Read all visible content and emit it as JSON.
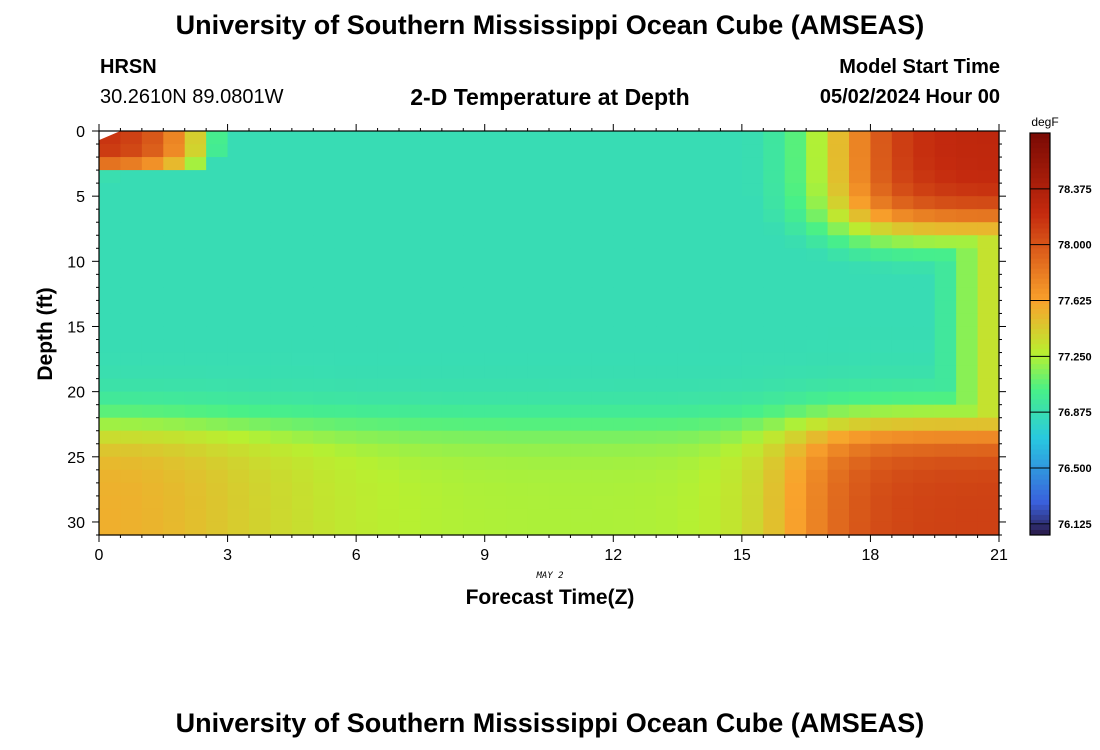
{
  "header": {
    "title": "University of Southern Mississippi Ocean Cube (AMSEAS)",
    "station": "HRSN",
    "coordinates": "30.2610N  89.0801W",
    "subtitle": "2-D Temperature at Depth",
    "model_start_label": "Model Start Time",
    "model_start_value": "05/02/2024 Hour 00"
  },
  "footer": {
    "title": "University of Southern Mississippi Ocean Cube (AMSEAS)"
  },
  "chart_data": {
    "type": "heatmap",
    "title": "2-D Temperature at Depth",
    "xlabel": "Forecast Time(Z)",
    "x_sublabel": "MAY 2",
    "ylabel": "Depth (ft)",
    "colorbar_label": "degF",
    "xlim": [
      0,
      21
    ],
    "ylim": [
      0,
      31
    ],
    "x_ticks": [
      0,
      3,
      6,
      9,
      12,
      15,
      18,
      21
    ],
    "y_ticks": [
      0,
      5,
      10,
      15,
      20,
      25,
      30
    ],
    "colorbar_ticks": [
      "78.375",
      "78.000",
      "77.625",
      "77.250",
      "76.875",
      "76.500",
      "76.125"
    ],
    "colorbar_range": [
      76.05,
      78.75
    ],
    "colors": {
      "cold": "#2a1a46",
      "blue": "#3a5fdc",
      "cyan": "#28c8e0",
      "green": "#48f088",
      "yellow": "#b8f030",
      "orange": "#f9a32c",
      "red": "#c42a0e",
      "darkred": "#7a0a04"
    }
  }
}
